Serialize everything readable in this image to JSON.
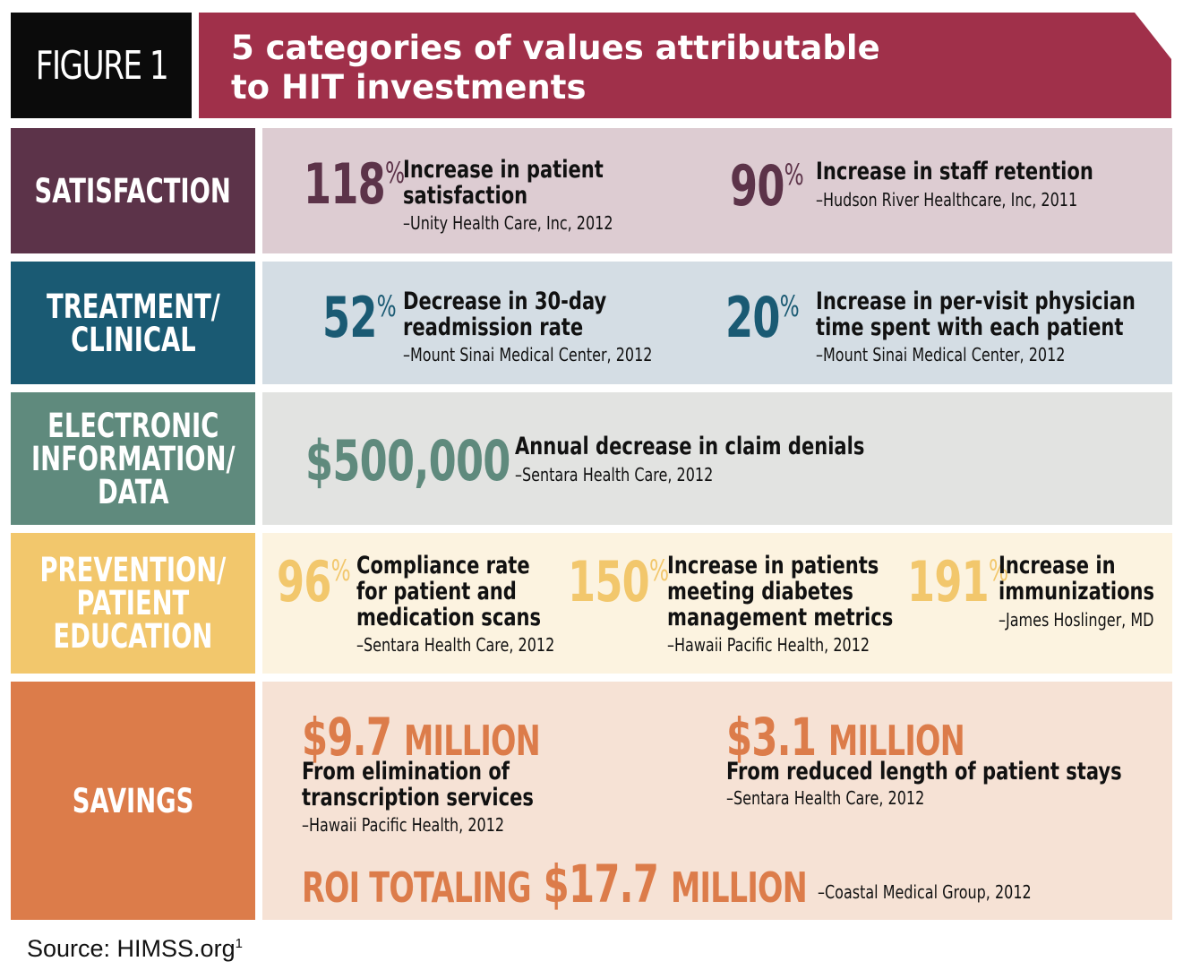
{
  "header": {
    "figure_label": "FIGURE 1",
    "title_line1": "5 categories of values attributable",
    "title_line2": "to HIT investments"
  },
  "colors": {
    "title_banner": "#a0304a",
    "satisfaction": "#5c3349",
    "satisfaction_bg": "#ddccd2",
    "treatment": "#1a5a73",
    "treatment_bg": "#d4dde4",
    "electronic": "#5f8a7d",
    "electronic_bg": "#e2e3e1",
    "prevention": "#f2c76c",
    "prevention_bg": "#fcf3e0",
    "savings": "#dc7c4a",
    "savings_bg": "#f6e2d5"
  },
  "categories": {
    "satisfaction": {
      "label": "SATISFACTION",
      "stats": [
        {
          "value": "118",
          "unit": "%",
          "desc_line1": "Increase in patient",
          "desc_line2": "satisfaction",
          "source": "–Unity Health Care, Inc, 2012"
        },
        {
          "value": "90",
          "unit": "%",
          "desc_line1": "Increase in staff retention",
          "source": "–Hudson River Healthcare, Inc, 2011"
        }
      ]
    },
    "treatment": {
      "label_line1": "TREATMENT/",
      "label_line2": "CLINICAL",
      "stats": [
        {
          "value": "52",
          "unit": "%",
          "desc_line1": "Decrease in 30-day",
          "desc_line2": "readmission rate",
          "source": "–Mount Sinai Medical Center, 2012"
        },
        {
          "value": "20",
          "unit": "%",
          "desc_line1": "Increase in per-visit physician",
          "desc_line2": "time spent with each patient",
          "source": "–Mount Sinai Medical Center, 2012"
        }
      ]
    },
    "electronic": {
      "label_line1": "ELECTRONIC",
      "label_line2": "INFORMATION/",
      "label_line3": "DATA",
      "stats": [
        {
          "value": "$500,000",
          "desc_line1": "Annual decrease in claim denials",
          "source": "–Sentara Health Care, 2012"
        }
      ]
    },
    "prevention": {
      "label_line1": "PREVENTION/",
      "label_line2": "PATIENT",
      "label_line3": "EDUCATION",
      "stats": [
        {
          "value": "96",
          "unit": "%",
          "desc_line1": "Compliance rate",
          "desc_line2": "for patient and",
          "desc_line3": "medication scans",
          "source": "–Sentara Health Care, 2012"
        },
        {
          "value": "150",
          "unit": "%",
          "desc_line1": "Increase in patients",
          "desc_line2": "meeting diabetes",
          "desc_line3": "management metrics",
          "source": "–Hawaii Pacific Health, 2012"
        },
        {
          "value": "191",
          "unit": "%",
          "desc_line1": "Increase in",
          "desc_line2": "immunizations",
          "source": "–James Hoslinger, MD"
        }
      ]
    },
    "savings": {
      "label": "SAVINGS",
      "stats": [
        {
          "value": "$9.7",
          "unit": "MILLION",
          "desc_line1": "From elimination of",
          "desc_line2": "transcription services",
          "source": "–Hawaii Pacific Health, 2012"
        },
        {
          "value": "$3.1",
          "unit": "MILLION",
          "desc_line1": "From reduced length of patient stays",
          "source": "–Sentara Health Care, 2012"
        }
      ],
      "roi": {
        "prefix": "ROI TOTALING",
        "value": "$17.7",
        "unit": "MILLION",
        "source": "–Coastal Medical Group, 2012"
      }
    }
  },
  "footer": {
    "source_text": "Source: HIMSS.org",
    "source_superscript": "1"
  }
}
